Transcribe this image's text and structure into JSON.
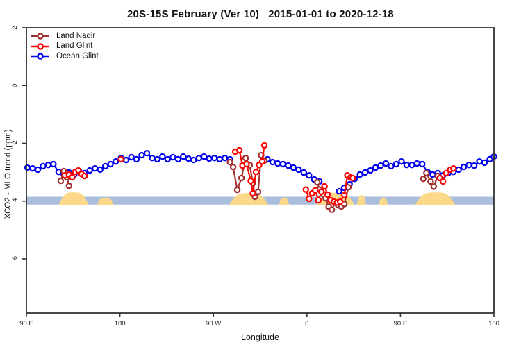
{
  "title": "20S-15S February (Ver 10)   2015-01-01 to 2020-12-18",
  "chart_data": {
    "type": "line",
    "title": "20S-15S February (Ver 10)   2015-01-01 to 2020-12-18",
    "xlabel": "Longitude",
    "ylabel": "XCO2 - MLO trend (ppm)",
    "x_axis": {
      "note": "degrees eastward from 90E; axis wraps 90E-180-90W-0-90E-180",
      "range_deg": [
        0,
        450
      ],
      "tick_deg": [
        0,
        90,
        180,
        270,
        360,
        450
      ],
      "tick_labels": [
        "90 E",
        "180",
        "90 W",
        "0",
        "90 E",
        "180"
      ]
    },
    "y_axis": {
      "range": [
        -7.87,
        2.05
      ],
      "ticks": [
        2,
        0,
        -2,
        -4,
        -6
      ],
      "tick_labels": [
        "2",
        "0",
        "-2",
        "-4",
        "-6"
      ]
    },
    "grid": false,
    "legend_position": "top-left-inside",
    "reference_band": {
      "ppm_top": -3.85,
      "ppm_bottom": -4.12,
      "color": "#a9bedc"
    },
    "land_shading": {
      "color": "#fcd98a",
      "regions": [
        {
          "from_deg": 31,
          "to_deg": 60,
          "peak_ppm": -3.7
        },
        {
          "from_deg": 68,
          "to_deg": 84,
          "peak_ppm": -3.88
        },
        {
          "from_deg": 195,
          "to_deg": 233,
          "peak_ppm": -3.72
        },
        {
          "from_deg": 243,
          "to_deg": 253,
          "peak_ppm": -3.88
        },
        {
          "from_deg": 279,
          "to_deg": 316,
          "peak_ppm": -3.71
        },
        {
          "from_deg": 318,
          "to_deg": 327,
          "peak_ppm": -3.8
        },
        {
          "from_deg": 339,
          "to_deg": 348,
          "peak_ppm": -3.88
        },
        {
          "from_deg": 374,
          "to_deg": 413,
          "peak_ppm": -3.7
        }
      ]
    },
    "series": [
      {
        "name": "Ocean Glint",
        "color": "#0000ee",
        "segments": [
          [
            [
              1,
              -2.84
            ],
            [
              6,
              -2.87
            ],
            [
              11,
              -2.91
            ],
            [
              16,
              -2.79
            ],
            [
              21,
              -2.75
            ],
            [
              26,
              -2.72
            ],
            [
              31,
              -2.99
            ],
            [
              36,
              -3.08
            ],
            [
              41,
              -3.01
            ],
            [
              46,
              -3.08
            ],
            [
              51,
              -2.99
            ],
            [
              56,
              -3.03
            ],
            [
              61,
              -2.94
            ],
            [
              66,
              -2.87
            ],
            [
              71,
              -2.91
            ],
            [
              76,
              -2.79
            ],
            [
              81,
              -2.72
            ],
            [
              86,
              -2.63
            ],
            [
              91,
              -2.51
            ],
            [
              96,
              -2.58
            ],
            [
              101,
              -2.48
            ],
            [
              106,
              -2.55
            ],
            [
              111,
              -2.41
            ],
            [
              116,
              -2.34
            ],
            [
              121,
              -2.51
            ],
            [
              126,
              -2.55
            ],
            [
              131,
              -2.46
            ],
            [
              136,
              -2.55
            ],
            [
              141,
              -2.48
            ],
            [
              146,
              -2.55
            ],
            [
              151,
              -2.46
            ],
            [
              156,
              -2.53
            ],
            [
              161,
              -2.58
            ],
            [
              166,
              -2.51
            ],
            [
              171,
              -2.46
            ],
            [
              176,
              -2.53
            ],
            [
              181,
              -2.51
            ],
            [
              186,
              -2.55
            ],
            [
              191,
              -2.51
            ],
            [
              196,
              -2.55
            ]
          ],
          [
            [
              232,
              -2.55
            ],
            [
              237,
              -2.65
            ],
            [
              242,
              -2.7
            ],
            [
              247,
              -2.72
            ],
            [
              252,
              -2.77
            ],
            [
              257,
              -2.84
            ],
            [
              262,
              -2.91
            ],
            [
              267,
              -3.01
            ],
            [
              272,
              -3.11
            ],
            [
              277,
              -3.25
            ],
            [
              282,
              -3.32
            ]
          ],
          [
            [
              301,
              -3.66
            ],
            [
              306,
              -3.54
            ],
            [
              311,
              -3.42
            ],
            [
              316,
              -3.23
            ],
            [
              321,
              -3.08
            ],
            [
              326,
              -3.01
            ],
            [
              331,
              -2.94
            ],
            [
              336,
              -2.84
            ],
            [
              341,
              -2.77
            ],
            [
              346,
              -2.7
            ],
            [
              351,
              -2.79
            ],
            [
              356,
              -2.72
            ],
            [
              361,
              -2.63
            ],
            [
              366,
              -2.75
            ],
            [
              371,
              -2.75
            ],
            [
              376,
              -2.7
            ],
            [
              381,
              -2.72
            ],
            [
              386,
              -2.99
            ],
            [
              391,
              -3.08
            ],
            [
              396,
              -3.03
            ],
            [
              401,
              -3.11
            ],
            [
              406,
              -3.03
            ],
            [
              411,
              -2.99
            ],
            [
              416,
              -2.91
            ],
            [
              421,
              -2.82
            ],
            [
              426,
              -2.75
            ],
            [
              431,
              -2.77
            ],
            [
              436,
              -2.63
            ],
            [
              441,
              -2.67
            ],
            [
              446,
              -2.55
            ],
            [
              450,
              -2.46
            ]
          ]
        ]
      },
      {
        "name": "Land Nadir",
        "color": "#a03030",
        "segments": [
          [
            [
              33,
              -3.3
            ],
            [
              36,
              -2.96
            ],
            [
              39,
              -3.18
            ],
            [
              41,
              -3.47
            ]
          ],
          [
            [
              196,
              -2.65
            ],
            [
              199,
              -2.82
            ],
            [
              203,
              -3.61
            ],
            [
              207,
              -3.2
            ],
            [
              211,
              -2.51
            ],
            [
              215,
              -2.75
            ],
            [
              218,
              -3.37
            ],
            [
              220,
              -3.85
            ],
            [
              223,
              -3.68
            ],
            [
              226,
              -2.41
            ],
            [
              229,
              -2.6
            ]
          ],
          [
            [
              280,
              -3.35
            ],
            [
              282,
              -3.6
            ],
            [
              286,
              -3.76
            ],
            [
              288,
              -3.9
            ],
            [
              291,
              -4.19
            ],
            [
              294,
              -4.3
            ],
            [
              297,
              -4.05
            ],
            [
              300,
              -4.14
            ],
            [
              303,
              -4.19
            ],
            [
              306,
              -4.1
            ],
            [
              310,
              -3.52
            ]
          ],
          [
            [
              382,
              -3.23
            ],
            [
              385,
              -3.03
            ],
            [
              389,
              -3.32
            ],
            [
              392,
              -3.5
            ],
            [
              396,
              -3.13
            ]
          ]
        ]
      },
      {
        "name": "Land Glint",
        "color": "#ff0000",
        "segments": [
          [
            [
              37,
              -3.11
            ],
            [
              41,
              -3.08
            ],
            [
              44,
              -3.18
            ],
            [
              47,
              -2.99
            ],
            [
              50,
              -2.94
            ],
            [
              53,
              -3.06
            ],
            [
              56,
              -3.13
            ]
          ],
          [
            [
              91,
              -2.55
            ]
          ],
          [
            [
              201,
              -2.29
            ],
            [
              205,
              -2.24
            ],
            [
              208,
              -2.77
            ],
            [
              212,
              -2.72
            ],
            [
              216,
              -3.3
            ],
            [
              218,
              -3.73
            ],
            [
              221,
              -2.99
            ],
            [
              224,
              -2.75
            ],
            [
              227,
              -2.63
            ],
            [
              229,
              -2.07
            ]
          ],
          [
            [
              269,
              -3.6
            ],
            [
              272,
              -3.92
            ],
            [
              275,
              -3.73
            ],
            [
              278,
              -3.63
            ],
            [
              281,
              -3.97
            ],
            [
              284,
              -3.68
            ],
            [
              287,
              -3.49
            ],
            [
              290,
              -3.78
            ],
            [
              293,
              -3.97
            ],
            [
              296,
              -4.02
            ],
            [
              299,
              -4.05
            ],
            [
              302,
              -4.02
            ],
            [
              306,
              -3.8
            ],
            [
              309,
              -3.11
            ],
            [
              312,
              -3.18
            ],
            [
              314,
              -3.2
            ]
          ],
          [
            [
              398,
              -3.2
            ],
            [
              401,
              -3.32
            ],
            [
              404,
              -3.03
            ],
            [
              408,
              -2.91
            ],
            [
              411,
              -2.87
            ]
          ]
        ]
      }
    ],
    "legend_order": [
      "Land Nadir",
      "Land Glint",
      "Ocean Glint"
    ]
  },
  "colors": {
    "land_nadir": "#a03030",
    "land_glint": "#ff0000",
    "ocean_glint": "#0000ee",
    "reference_band": "#a9bedc",
    "land_shading": "#fcd98a",
    "axis": "#333333"
  }
}
